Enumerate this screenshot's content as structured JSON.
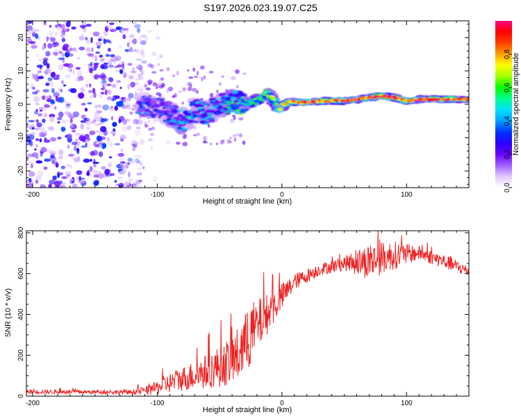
{
  "title": "S197.2026.023.19.07.C25",
  "colors": {
    "snr_line": "#ee2222",
    "axis": "#000000",
    "background": "#ffffff"
  },
  "chart_data": [
    {
      "type": "heatmap",
      "title": "S197.2026.023.19.07.C25",
      "xlabel": "Height of straight line (km)",
      "ylabel": "Frequency (Hz)",
      "xlim": [
        -205,
        150
      ],
      "ylim": [
        -25,
        25
      ],
      "xticks": [
        -200,
        -100,
        0,
        100
      ],
      "yticks": [
        -20,
        -10,
        0,
        10,
        20
      ],
      "colorbar": {
        "label": "Normalized spectral amplitude",
        "range": [
          0,
          1
        ],
        "ticks": [
          "0.0",
          "0.2",
          "0.4",
          "0.6",
          "0.8"
        ],
        "colormap": [
          "#ffffff",
          "#e4c8ff",
          "#a060ff",
          "#6a00ff",
          "#2a00ff",
          "#0030ff",
          "#00a0ff",
          "#00e0ff",
          "#00ff90",
          "#00ff00",
          "#a0ff00",
          "#ffff00",
          "#ffa000",
          "#ff4000",
          "#ff0000",
          "#ff0080"
        ]
      },
      "ridge": {
        "description": "frequency of dominant spectral ridge vs height",
        "x": [
          -115,
          -100,
          -90,
          -80,
          -70,
          -60,
          -50,
          -40,
          -30,
          -20,
          -12,
          -8,
          -3,
          0,
          5,
          15,
          30,
          50,
          70,
          80,
          90,
          100,
          110,
          130,
          150
        ],
        "freq": [
          0,
          -1,
          -3,
          -5,
          -2,
          -3,
          0,
          1,
          0,
          1,
          3,
          2,
          -1,
          -1,
          1,
          0.5,
          1,
          1,
          2,
          2.5,
          2,
          1,
          1.5,
          1.5,
          1.5
        ],
        "amplitude": [
          0.35,
          0.3,
          0.35,
          0.45,
          0.4,
          0.45,
          0.4,
          0.55,
          0.5,
          0.55,
          0.65,
          0.6,
          0.7,
          0.75,
          0.85,
          0.9,
          0.9,
          0.9,
          0.9,
          0.95,
          0.95,
          0.9,
          0.9,
          0.9,
          0.9
        ]
      },
      "noise_region": {
        "description": "scattered low-amplitude noise blobs across full frequency band",
        "x_range": [
          -205,
          -110
        ],
        "freq_range": [
          -25,
          25
        ],
        "amplitude_range": [
          0.0,
          0.3
        ]
      }
    },
    {
      "type": "line",
      "xlabel": "Height of straight line (km)",
      "ylabel": "SNR (10 * v/v)",
      "xlim": [
        -205,
        150
      ],
      "ylim": [
        0,
        810
      ],
      "xticks": [
        -200,
        -100,
        0,
        100
      ],
      "yticks": [
        0,
        200,
        400,
        600,
        800
      ],
      "series": [
        {
          "name": "SNR",
          "color": "#ee2222",
          "trend": {
            "x": [
              -205,
              -150,
              -120,
              -105,
              -95,
              -80,
              -60,
              -45,
              -35,
              -25,
              -15,
              -5,
              10,
              30,
              50,
              70,
              90,
              110,
              130,
              150
            ],
            "mean": [
              22,
              20,
              20,
              30,
              55,
              85,
              120,
              160,
              200,
              300,
              380,
              450,
              560,
              620,
              650,
              660,
              690,
              700,
              660,
              610
            ],
            "jitter": [
              10,
              10,
              12,
              25,
              45,
              60,
              85,
              110,
              140,
              160,
              110,
              80,
              40,
              30,
              35,
              90,
              70,
              35,
              35,
              30
            ]
          }
        }
      ]
    }
  ]
}
